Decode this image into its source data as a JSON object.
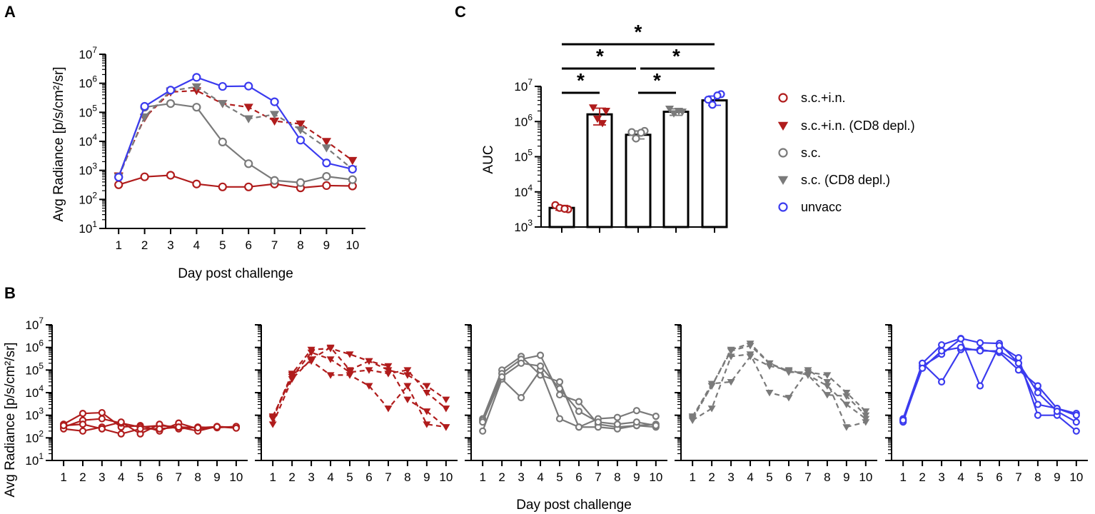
{
  "figure": {
    "panel_letters": [
      "A",
      "B",
      "C"
    ]
  },
  "chart_data": [
    {
      "panel": "A",
      "type": "line",
      "xlabel": "Day post challenge",
      "ylabel": "Avg Radiance [p/s/cm²/sr]",
      "y_scale": "log10",
      "ylim": [
        10,
        10000000
      ],
      "x": [
        1,
        2,
        3,
        4,
        5,
        6,
        7,
        8,
        9,
        10
      ],
      "series": [
        {
          "name": "s.c.+i.n.",
          "color": "#b01c1c",
          "dashed": false,
          "marker": "circle-open",
          "values": [
            320,
            600,
            680,
            340,
            270,
            270,
            340,
            250,
            300,
            290
          ]
        },
        {
          "name": "s.c.+i.n. (CD8 depl.)",
          "color": "#b01c1c",
          "dashed": true,
          "marker": "triangle-down",
          "values": [
            650,
            65000,
            500000,
            560000,
            200000,
            150000,
            50000,
            40000,
            10000,
            2200
          ]
        },
        {
          "name": "s.c.",
          "color": "#7a7a7a",
          "dashed": false,
          "marker": "circle-open",
          "values": [
            600,
            150000,
            200000,
            150000,
            9500,
            1700,
            450,
            380,
            620,
            480
          ]
        },
        {
          "name": "s.c. (CD8 depl.)",
          "color": "#7a7a7a",
          "dashed": true,
          "marker": "triangle-down",
          "values": [
            600,
            70000,
            550000,
            760000,
            200000,
            60000,
            85000,
            25000,
            6000,
            1100
          ]
        },
        {
          "name": "unvacc",
          "color": "#3b3bef",
          "dashed": false,
          "marker": "circle-open",
          "values": [
            580,
            160000,
            580000,
            1600000,
            780000,
            800000,
            230000,
            11000,
            1800,
            1100
          ]
        }
      ]
    },
    {
      "panel": "B",
      "type": "line",
      "xlabel": "Day post challenge",
      "ylabel": "Avg Radiance [p/s/cm²/sr]",
      "y_scale": "log10",
      "ylim": [
        10,
        10000000
      ],
      "x": [
        1,
        2,
        3,
        4,
        5,
        6,
        7,
        8,
        9,
        10
      ],
      "subplots": [
        {
          "group": "s.c.+i.n.",
          "color": "#b01c1c",
          "dashed": false,
          "marker": "circle-open",
          "animals": [
            [
              400,
              1200,
              1300,
              300,
              350,
              200,
              450,
              250,
              300,
              300
            ],
            [
              300,
              600,
              700,
              450,
              300,
              350,
              300,
              200,
              320,
              280
            ],
            [
              250,
              200,
              300,
              500,
              150,
              400,
              250,
              300,
              280,
              320
            ],
            [
              350,
              400,
              250,
              150,
              250,
              250,
              300,
              280,
              310,
              270
            ]
          ]
        },
        {
          "group": "s.c.+i.n. (CD8 depl.)",
          "color": "#b01c1c",
          "dashed": true,
          "marker": "triangle-down",
          "animals": [
            [
              800,
              70000,
              800000,
              900000,
              500000,
              250000,
              100000,
              60000,
              20000,
              5000
            ],
            [
              400,
              40000,
              300000,
              1000000,
              100000,
              250000,
              150000,
              5000,
              1500,
              300
            ],
            [
              700,
              60000,
              250000,
              60000,
              60000,
              20000,
              2000,
              20000,
              400,
              300
            ],
            [
              900,
              50000,
              600000,
              300000,
              80000,
              100000,
              70000,
              100000,
              10000,
              2000
            ]
          ]
        },
        {
          "group": "s.c.",
          "color": "#7a7a7a",
          "dashed": false,
          "marker": "circle-open",
          "animals": [
            [
              700,
              100000,
              400000,
              60000,
              30000,
              300,
              700,
              800,
              1600,
              900
            ],
            [
              600,
              70000,
              300000,
              450000,
              8000,
              4000,
              400,
              300,
              350,
              400
            ],
            [
              200,
              40000,
              6000,
              100000,
              700,
              300,
              300,
              250,
              350,
              300
            ],
            [
              500,
              50000,
              200000,
              150000,
              15000,
              1500,
              500,
              400,
              500,
              350
            ]
          ]
        },
        {
          "group": "s.c. (CD8 depl.)",
          "color": "#7a7a7a",
          "dashed": true,
          "marker": "triangle-down",
          "animals": [
            [
              700,
              20000,
              700000,
              1200000,
              200000,
              80000,
              80000,
              60000,
              10000,
              1500
            ],
            [
              600,
              2000,
              400000,
              500000,
              10000,
              6000,
              100000,
              30000,
              300,
              500
            ],
            [
              800,
              25000,
              30000,
              400000,
              150000,
              100000,
              60000,
              8000,
              7000,
              1000
            ],
            [
              900,
              20000,
              800000,
              1500000,
              200000,
              90000,
              60000,
              20000,
              3000,
              700
            ]
          ]
        },
        {
          "group": "unvacc",
          "color": "#3b3bef",
          "dashed": false,
          "marker": "circle-open",
          "animals": [
            [
              700,
              200000,
              1300000,
              2500000,
              1600000,
              1500000,
              200000,
              3000,
              2000,
              1200
            ],
            [
              500,
              150000,
              500000,
              2400000,
              20000,
              1200000,
              350000,
              1000,
              1000,
              200
            ],
            [
              600,
              200000,
              30000,
              800000,
              800000,
              600000,
              100000,
              20000,
              2000,
              1000
            ],
            [
              600,
              120000,
              700000,
              1000000,
              700000,
              700000,
              200000,
              10000,
              1500,
              500
            ]
          ]
        }
      ]
    },
    {
      "panel": "C",
      "type": "bar",
      "ylabel": "AUC",
      "y_scale": "log10",
      "ylim": [
        1000,
        10000000
      ],
      "categories": [
        "s.c.+i.n.",
        "s.c.+i.n. (CD8 depl.)",
        "s.c.",
        "s.c. (CD8 depl.)",
        "unvacc"
      ],
      "values": [
        3500,
        1600000,
        420000,
        1900000,
        4000000
      ],
      "errors": [
        [
          3000,
          4100
        ],
        [
          800000,
          2400000
        ],
        [
          320000,
          540000
        ],
        [
          1500000,
          2300000
        ],
        [
          2900000,
          5300000
        ]
      ],
      "points": [
        [
          4200,
          3200,
          3500,
          3300
        ],
        [
          2500000,
          2000000,
          1200000,
          900000
        ],
        [
          500000,
          540000,
          330000,
          480000
        ],
        [
          2300000,
          1900000,
          1700000,
          2000000
        ],
        [
          4200000,
          6000000,
          3000000,
          5500000
        ]
      ],
      "significance": [
        {
          "from": 0,
          "to": 1,
          "label": "*"
        },
        {
          "from": 2,
          "to": 3,
          "label": "*"
        },
        {
          "from": 0,
          "to": 2,
          "label": "*"
        },
        {
          "from": 2,
          "to": 4,
          "label": "*"
        },
        {
          "from": 0,
          "to": 4,
          "label": "*"
        }
      ]
    }
  ],
  "legend": [
    {
      "label": "s.c.+i.n.",
      "color": "#b01c1c",
      "marker": "circle-open"
    },
    {
      "label": "s.c.+i.n. (CD8 depl.)",
      "color": "#b01c1c",
      "marker": "triangle-down"
    },
    {
      "label": "s.c.",
      "color": "#7a7a7a",
      "marker": "circle-open"
    },
    {
      "label": "s.c. (CD8 depl.)",
      "color": "#7a7a7a",
      "marker": "triangle-down"
    },
    {
      "label": "unvacc",
      "color": "#3b3bef",
      "marker": "circle-open"
    }
  ]
}
